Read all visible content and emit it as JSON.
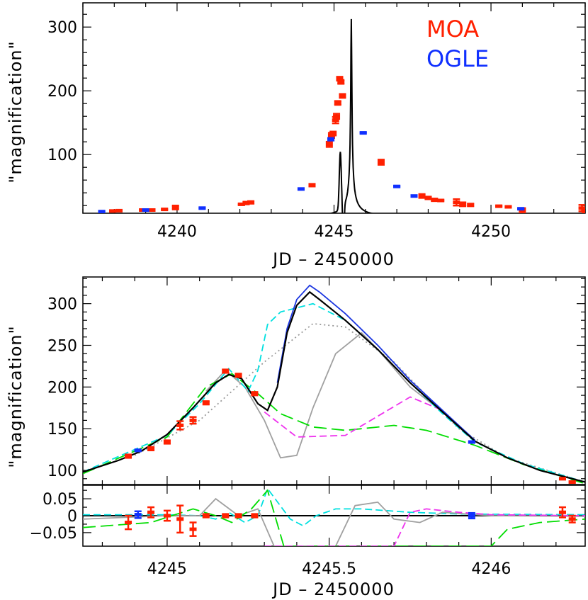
{
  "colors": {
    "moa": "#ff2000",
    "ogle": "#1030ff",
    "model_black": "#000000",
    "model_blue": "#1a35e0",
    "cyan": "#00e0e0",
    "gray": "#a0a0a0",
    "green": "#00dd00",
    "magenta": "#ee33ee",
    "dotted": "#999999"
  },
  "chart_data": [
    {
      "type": "scatter",
      "title": "",
      "xlabel": "JD – 2450000",
      "ylabel": "\"magnification\"",
      "xlim": [
        4237,
        4253
      ],
      "ylim": [
        8,
        338
      ],
      "xticks": [
        4240,
        4245,
        4250
      ],
      "yticks": [
        100,
        200,
        300
      ],
      "legend": {
        "position": "top-right",
        "entries": [
          "MOA",
          "OGLE"
        ]
      },
      "series": [
        {
          "name": "MOA",
          "points": [
            {
              "x": 4237.95,
              "y": 11.5,
              "err": 1
            },
            {
              "x": 4238.15,
              "y": 12,
              "err": 1
            },
            {
              "x": 4238.9,
              "y": 13,
              "err": 1
            },
            {
              "x": 4239.2,
              "y": 13,
              "err": 1
            },
            {
              "x": 4239.6,
              "y": 14,
              "err": 1
            },
            {
              "x": 4239.95,
              "y": 17,
              "err": 3
            },
            {
              "x": 4242.05,
              "y": 22,
              "err": 1
            },
            {
              "x": 4242.2,
              "y": 24,
              "err": 2
            },
            {
              "x": 4242.35,
              "y": 25,
              "err": 2
            },
            {
              "x": 4244.3,
              "y": 52,
              "err": 2
            },
            {
              "x": 4244.85,
              "y": 116,
              "err": 4
            },
            {
              "x": 4244.92,
              "y": 130,
              "err": 4
            },
            {
              "x": 4244.97,
              "y": 133,
              "err": 3
            },
            {
              "x": 4245.05,
              "y": 154,
              "err": 5
            },
            {
              "x": 4245.08,
              "y": 160,
              "err": 4
            },
            {
              "x": 4245.12,
              "y": 181,
              "err": 3
            },
            {
              "x": 4245.18,
              "y": 219,
              "err": 3
            },
            {
              "x": 4245.22,
              "y": 214,
              "err": 3
            },
            {
              "x": 4245.27,
              "y": 192,
              "err": 3
            },
            {
              "x": 4246.5,
              "y": 88,
              "err": 4
            },
            {
              "x": 4247.8,
              "y": 35,
              "err": 3
            },
            {
              "x": 4248.0,
              "y": 32,
              "err": 2
            },
            {
              "x": 4248.2,
              "y": 29,
              "err": 2
            },
            {
              "x": 4248.4,
              "y": 28,
              "err": 1
            },
            {
              "x": 4248.9,
              "y": 25,
              "err": 5
            },
            {
              "x": 4249.1,
              "y": 22,
              "err": 3
            },
            {
              "x": 4249.35,
              "y": 21,
              "err": 2
            },
            {
              "x": 4250.25,
              "y": 19,
              "err": 1
            },
            {
              "x": 4250.55,
              "y": 18,
              "err": 1
            },
            {
              "x": 4251.0,
              "y": 12,
              "err": 4
            },
            {
              "x": 4252.9,
              "y": 16,
              "err": 5
            },
            {
              "x": 4253.0,
              "y": 12,
              "err": 4
            }
          ]
        },
        {
          "name": "OGLE",
          "points": [
            {
              "x": 4237.6,
              "y": 10.5,
              "err": 1
            },
            {
              "x": 4239.0,
              "y": 13,
              "err": 1
            },
            {
              "x": 4240.8,
              "y": 16,
              "err": 1
            },
            {
              "x": 4243.95,
              "y": 46,
              "err": 1
            },
            {
              "x": 4244.9,
              "y": 124,
              "err": 2
            },
            {
              "x": 4245.93,
              "y": 134,
              "err": 1
            },
            {
              "x": 4247.0,
              "y": 50,
              "err": 1
            },
            {
              "x": 4247.55,
              "y": 35,
              "err": 1
            },
            {
              "x": 4250.95,
              "y": 15,
              "err": 1
            }
          ]
        }
      ]
    },
    {
      "type": "line",
      "title": "",
      "xlabel": "JD – 2450000",
      "ylabel": "\"magnification\"",
      "xlim": [
        4244.74,
        4246.29
      ],
      "ylim": [
        83,
        332
      ],
      "xticks": [
        4245,
        4245.5,
        4246
      ],
      "xtick_labels": [
        "4245",
        "4245.5",
        "4246"
      ],
      "yticks": [
        100,
        150,
        200,
        250,
        300
      ],
      "models": [
        {
          "color": "black",
          "style": "solid",
          "points": [
            [
              4244.74,
              98
            ],
            [
              4244.85,
              112
            ],
            [
              4244.92,
              123
            ],
            [
              4245.0,
              143
            ],
            [
              4245.08,
              175
            ],
            [
              4245.15,
              205
            ],
            [
              4245.19,
              215
            ],
            [
              4245.23,
              210
            ],
            [
              4245.28,
              180
            ],
            [
              4245.31,
              172
            ],
            [
              4245.34,
              200
            ],
            [
              4245.37,
              265
            ],
            [
              4245.4,
              298
            ],
            [
              4245.44,
              314
            ],
            [
              4245.47,
              305
            ],
            [
              4245.55,
              280
            ],
            [
              4245.65,
              245
            ],
            [
              4245.75,
              205
            ],
            [
              4245.85,
              170
            ],
            [
              4245.95,
              135
            ],
            [
              4246.05,
              115
            ],
            [
              4246.15,
              100
            ],
            [
              4246.29,
              86
            ]
          ]
        },
        {
          "color": "blue",
          "style": "solid",
          "points": [
            [
              4245.34,
              205
            ],
            [
              4245.37,
              270
            ],
            [
              4245.4,
              305
            ],
            [
              4245.44,
              322
            ],
            [
              4245.47,
              314
            ],
            [
              4245.55,
              288
            ],
            [
              4245.65,
              250
            ],
            [
              4245.75,
              208
            ],
            [
              4245.85,
              172
            ],
            [
              4245.95,
              136
            ]
          ]
        },
        {
          "color": "cyan",
          "style": "dashed",
          "points": [
            [
              4244.74,
              98
            ],
            [
              4245.0,
              142
            ],
            [
              4245.1,
              180
            ],
            [
              4245.19,
              222
            ],
            [
              4245.25,
              195
            ],
            [
              4245.28,
              220
            ],
            [
              4245.31,
              275
            ],
            [
              4245.35,
              290
            ],
            [
              4245.45,
              300
            ],
            [
              4245.55,
              280
            ],
            [
              4245.65,
              245
            ],
            [
              4245.75,
              205
            ],
            [
              4245.85,
              168
            ],
            [
              4245.95,
              134
            ],
            [
              4246.1,
              108
            ],
            [
              4246.29,
              86
            ]
          ]
        },
        {
          "color": "gray",
          "style": "solid",
          "points": [
            [
              4245.12,
              195
            ],
            [
              4245.18,
              220
            ],
            [
              4245.24,
              200
            ],
            [
              4245.3,
              160
            ],
            [
              4245.35,
              115
            ],
            [
              4245.4,
              118
            ],
            [
              4245.45,
              175
            ],
            [
              4245.52,
              240
            ],
            [
              4245.6,
              265
            ],
            [
              4245.65,
              245
            ],
            [
              4245.75,
              200
            ],
            [
              4245.85,
              170
            ]
          ]
        },
        {
          "color": "green",
          "style": "long-dashed",
          "points": [
            [
              4244.74,
              96
            ],
            [
              4245.0,
              140
            ],
            [
              4245.12,
              200
            ],
            [
              4245.2,
              216
            ],
            [
              4245.28,
              192
            ],
            [
              4245.35,
              168
            ],
            [
              4245.45,
              152
            ],
            [
              4245.55,
              148
            ],
            [
              4245.7,
              154
            ],
            [
              4245.8,
              148
            ],
            [
              4245.95,
              130
            ],
            [
              4246.1,
              107
            ],
            [
              4246.29,
              84
            ]
          ]
        },
        {
          "color": "magenta",
          "style": "dashed",
          "points": [
            [
              4245.3,
              170
            ],
            [
              4245.4,
              140
            ],
            [
              4245.55,
              142
            ],
            [
              4245.65,
              165
            ],
            [
              4245.75,
              188
            ],
            [
              4245.85,
              172
            ]
          ]
        },
        {
          "color": "gray",
          "style": "dotted",
          "points": [
            [
              4244.9,
              118
            ],
            [
              4245.1,
              160
            ],
            [
              4245.3,
              230
            ],
            [
              4245.45,
              276
            ],
            [
              4245.55,
              272
            ],
            [
              4245.7,
              230
            ],
            [
              4245.9,
              150
            ],
            [
              4246.05,
              115
            ],
            [
              4246.29,
              86
            ]
          ]
        }
      ],
      "points_moa": [
        {
          "x": 4244.88,
          "y": 117,
          "err": 2
        },
        {
          "x": 4244.95,
          "y": 126,
          "err": 2
        },
        {
          "x": 4245.0,
          "y": 134,
          "err": 2
        },
        {
          "x": 4245.04,
          "y": 154,
          "err": 5
        },
        {
          "x": 4245.08,
          "y": 160,
          "err": 4
        },
        {
          "x": 4245.12,
          "y": 181,
          "err": 2
        },
        {
          "x": 4245.18,
          "y": 219,
          "err": 2
        },
        {
          "x": 4245.22,
          "y": 214,
          "err": 2
        },
        {
          "x": 4245.27,
          "y": 192,
          "err": 2
        },
        {
          "x": 4246.22,
          "y": 90,
          "err": 1
        },
        {
          "x": 4246.25,
          "y": 86,
          "err": 1
        }
      ],
      "points_ogle": [
        {
          "x": 4244.91,
          "y": 124,
          "err": 1
        },
        {
          "x": 4245.94,
          "y": 134,
          "err": 1
        }
      ]
    },
    {
      "type": "line",
      "title": "",
      "xlabel": "JD – 2450000",
      "ylabel": "",
      "xlim": [
        4244.74,
        4246.29
      ],
      "ylim": [
        -0.09,
        0.09
      ],
      "yticks": [
        0.05,
        0,
        -0.05
      ],
      "ytick_labels": [
        "0.05",
        "0",
        "−0.05"
      ],
      "residuals_moa": [
        {
          "x": 4244.88,
          "y": -0.02,
          "err": 0.02
        },
        {
          "x": 4244.95,
          "y": 0.01,
          "err": 0.015
        },
        {
          "x": 4245.0,
          "y": 0.0,
          "err": 0.015
        },
        {
          "x": 4245.04,
          "y": -0.01,
          "err": 0.04
        },
        {
          "x": 4245.08,
          "y": -0.04,
          "err": 0.02
        },
        {
          "x": 4245.12,
          "y": 0.0,
          "err": 0.005
        },
        {
          "x": 4245.18,
          "y": 0.0,
          "err": 0.005
        },
        {
          "x": 4245.22,
          "y": 0.0,
          "err": 0.005
        },
        {
          "x": 4245.27,
          "y": 0.0,
          "err": 0.005
        },
        {
          "x": 4246.22,
          "y": 0.01,
          "err": 0.015
        },
        {
          "x": 4246.25,
          "y": -0.01,
          "err": 0.01
        }
      ],
      "residuals_ogle": [
        {
          "x": 4244.91,
          "y": 0.003,
          "err": 0.01
        },
        {
          "x": 4245.94,
          "y": 0.0,
          "err": 0.008
        }
      ],
      "models": [
        {
          "color": "cyan",
          "style": "dashed",
          "points": [
            [
              4244.74,
              0.003
            ],
            [
              4245.0,
              0.003
            ],
            [
              4245.1,
              0.0
            ],
            [
              4245.15,
              -0.01
            ],
            [
              4245.19,
              0.01
            ],
            [
              4245.24,
              -0.02
            ],
            [
              4245.28,
              0.0
            ],
            [
              4245.31,
              0.08
            ],
            [
              4245.38,
              -0.01
            ],
            [
              4245.42,
              -0.03
            ],
            [
              4245.46,
              0.0
            ],
            [
              4245.52,
              0.02
            ],
            [
              4245.6,
              0.02
            ],
            [
              4245.75,
              0.01
            ],
            [
              4245.9,
              0.005
            ],
            [
              4246.29,
              0.003
            ]
          ]
        },
        {
          "color": "gray",
          "style": "solid",
          "points": [
            [
              4244.74,
              -0.01
            ],
            [
              4245.0,
              0.0
            ],
            [
              4245.1,
              0.0
            ],
            [
              4245.15,
              0.05
            ],
            [
              4245.22,
              0.0
            ],
            [
              4245.28,
              0.02
            ],
            [
              4245.33,
              -0.09
            ],
            [
              4245.52,
              -0.09
            ],
            [
              4245.58,
              0.03
            ],
            [
              4245.65,
              0.04
            ],
            [
              4245.7,
              -0.01
            ],
            [
              4245.78,
              -0.02
            ],
            [
              4245.85,
              0.01
            ],
            [
              4246.0,
              0.0
            ],
            [
              4246.29,
              -0.002
            ]
          ]
        },
        {
          "color": "green",
          "style": "long-dashed",
          "points": [
            [
              4244.74,
              -0.035
            ],
            [
              4244.95,
              -0.02
            ],
            [
              4245.08,
              0.02
            ],
            [
              4245.15,
              0.0
            ],
            [
              4245.2,
              -0.02
            ],
            [
              4245.26,
              0.02
            ],
            [
              4245.31,
              0.075
            ],
            [
              4245.36,
              -0.09
            ],
            [
              4246.0,
              -0.09
            ],
            [
              4246.05,
              -0.04
            ],
            [
              4246.15,
              -0.02
            ],
            [
              4246.29,
              -0.01
            ]
          ]
        },
        {
          "color": "magenta",
          "style": "dashed",
          "points": [
            [
              4245.3,
              -0.09
            ],
            [
              4245.7,
              -0.09
            ],
            [
              4245.75,
              0.01
            ],
            [
              4245.8,
              0.02
            ],
            [
              4245.9,
              0.01
            ],
            [
              4246.0,
              0.003
            ],
            [
              4246.29,
              0.0
            ]
          ]
        }
      ]
    }
  ]
}
